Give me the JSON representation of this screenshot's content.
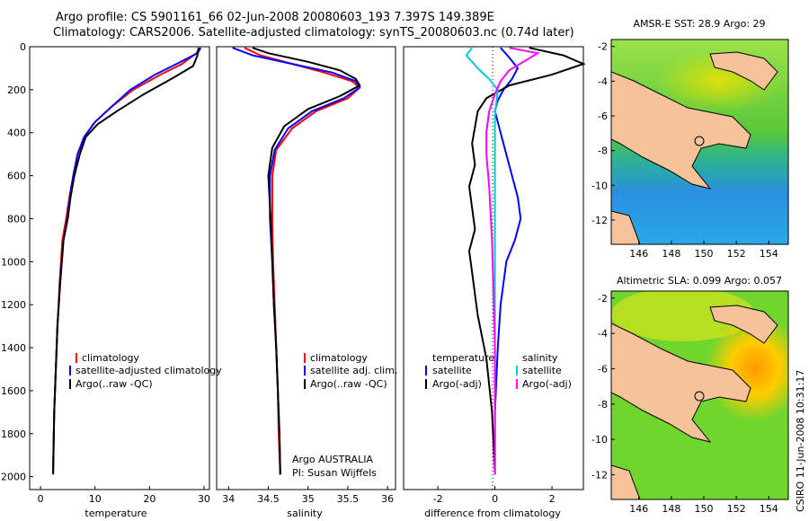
{
  "header": {
    "title_line1": "Argo profile: CS 5901161_66 02-Jun-2008 20080603_193 7.397S 149.389E",
    "title_line2": "Climatology: CARS2006. Satellite-adjusted climatology: synTS_20080603.nc (0.74d later)"
  },
  "side_label": "CSIRO 11-Jun-2008 10:31:17",
  "chart_data": [
    {
      "type": "line",
      "name": "temperature-profile",
      "xlabel": "temperature",
      "xlim": [
        -2,
        31
      ],
      "ylim": [
        0,
        2060
      ],
      "xticks": [
        0,
        10,
        20,
        30
      ],
      "yticks": [
        0,
        200,
        400,
        600,
        800,
        1000,
        1200,
        1400,
        1600,
        1800,
        2000
      ],
      "legend": [
        "climatology",
        "satellite-adjusted climatology",
        "Argo(..raw -QC)"
      ],
      "series": [
        {
          "name": "climatology",
          "color": "#ff0000",
          "x": [
            29.2,
            28.6,
            26.0,
            22.0,
            17.0,
            13.0,
            10.0,
            8.0,
            6.8,
            6.0,
            5.3,
            4.7,
            4.0,
            3.5,
            3.1,
            2.8,
            2.5,
            2.3
          ],
          "y": [
            5,
            30,
            80,
            130,
            200,
            280,
            350,
            420,
            500,
            600,
            700,
            800,
            900,
            1100,
            1300,
            1500,
            1700,
            1950
          ]
        },
        {
          "name": "satellite-adjusted climatology",
          "color": "#0000ff",
          "x": [
            29.4,
            28.8,
            25.0,
            21.0,
            16.5,
            13.0,
            10.0,
            8.0,
            6.8,
            6.0,
            5.4,
            4.9,
            4.2,
            3.6,
            3.1,
            2.8,
            2.5,
            2.3
          ],
          "y": [
            5,
            30,
            80,
            130,
            200,
            280,
            350,
            420,
            500,
            600,
            700,
            800,
            900,
            1100,
            1300,
            1500,
            1700,
            1980
          ]
        },
        {
          "name": "Argo(..raw -QC)",
          "color": "#000000",
          "x": [
            29.0,
            28.8,
            28.0,
            24.0,
            19.0,
            14.0,
            10.5,
            8.3,
            7.2,
            6.2,
            5.5,
            5.0,
            4.2,
            3.6,
            3.1,
            2.8,
            2.5,
            2.3
          ],
          "y": [
            5,
            40,
            90,
            150,
            220,
            300,
            360,
            420,
            500,
            600,
            700,
            800,
            900,
            1100,
            1300,
            1500,
            1700,
            1990
          ]
        }
      ]
    },
    {
      "type": "line",
      "name": "salinity-profile",
      "xlabel": "salinity",
      "xlim": [
        33.85,
        36.1
      ],
      "ylim": [
        0,
        2060
      ],
      "xticks": [
        34,
        34.5,
        35,
        35.5,
        36
      ],
      "legend": [
        "climatology",
        "satellite adj. clim.",
        "Argo(..raw -QC)"
      ],
      "annotations": [
        "Argo AUSTRALIA",
        "PI: Susan Wijffels"
      ],
      "series": [
        {
          "name": "climatology",
          "color": "#ff0000",
          "x": [
            34.2,
            34.4,
            34.8,
            35.2,
            35.55,
            35.65,
            35.5,
            35.1,
            34.8,
            34.6,
            34.55,
            34.55,
            34.56,
            34.58,
            34.6,
            34.62,
            34.63,
            34.65
          ],
          "y": [
            5,
            40,
            80,
            120,
            160,
            190,
            240,
            300,
            380,
            480,
            600,
            800,
            1000,
            1200,
            1400,
            1600,
            1800,
            1990
          ]
        },
        {
          "name": "satellite adj. clim.",
          "color": "#0000ff",
          "x": [
            34.05,
            34.3,
            34.8,
            35.3,
            35.6,
            35.65,
            35.45,
            35.05,
            34.75,
            34.58,
            34.52,
            34.52,
            34.55,
            34.57,
            34.6,
            34.62,
            34.64,
            34.65
          ],
          "y": [
            5,
            40,
            80,
            120,
            160,
            190,
            240,
            300,
            380,
            480,
            600,
            800,
            1000,
            1200,
            1400,
            1600,
            1800,
            1990
          ]
        },
        {
          "name": "Argo(..raw -QC)",
          "color": "#000000",
          "x": [
            34.3,
            34.5,
            35.0,
            35.4,
            35.6,
            35.65,
            35.4,
            35.0,
            34.7,
            34.55,
            34.5,
            34.53,
            34.55,
            34.57,
            34.6,
            34.62,
            34.64,
            34.65
          ],
          "y": [
            5,
            30,
            70,
            110,
            150,
            180,
            230,
            290,
            370,
            470,
            600,
            800,
            1000,
            1200,
            1400,
            1600,
            1800,
            1990
          ]
        }
      ]
    },
    {
      "type": "line",
      "name": "difference-profile",
      "xlabel": "difference from climatology",
      "xlim": [
        -3.2,
        3.1
      ],
      "ylim": [
        0,
        2060
      ],
      "xticks": [
        -2,
        0,
        2
      ],
      "legend_temperature": {
        "heading": "temperature",
        "items": [
          "satellite",
          "Argo(-adj)"
        ]
      },
      "legend_salinity": {
        "heading": "salinity",
        "items": [
          "satellite",
          "Argo(-adj)"
        ]
      },
      "series": [
        {
          "name": "temperature satellite",
          "color": "#0000ff",
          "x": [
            0.2,
            0.5,
            0.8,
            0.6,
            0.3,
            0.1,
            0.0,
            0.2,
            0.4,
            0.6,
            0.8,
            0.9,
            0.7,
            0.4,
            0.2,
            0.1,
            0.0,
            0.0
          ],
          "y": [
            5,
            50,
            100,
            150,
            200,
            250,
            300,
            400,
            500,
            600,
            700,
            800,
            900,
            1000,
            1200,
            1400,
            1700,
            1990
          ]
        },
        {
          "name": "temperature Argo(-adj)",
          "color": "#000000",
          "x": [
            1.2,
            2.4,
            3.1,
            2.0,
            0.5,
            -0.3,
            -0.6,
            -0.8,
            -0.7,
            -0.9,
            -0.8,
            -0.7,
            -0.9,
            -0.8,
            -0.6,
            -0.3,
            -0.1,
            0.0
          ],
          "y": [
            5,
            40,
            80,
            130,
            180,
            240,
            300,
            450,
            550,
            650,
            750,
            850,
            950,
            1050,
            1250,
            1450,
            1700,
            1990
          ]
        },
        {
          "name": "salinity satellite",
          "color": "#00cccc",
          "x": [
            -0.8,
            -1.0,
            -0.6,
            -0.2,
            0.1,
            0.05,
            0.0,
            0.0,
            0.0,
            0.0,
            0.0,
            0.0
          ],
          "y": [
            5,
            40,
            100,
            150,
            200,
            260,
            320,
            450,
            600,
            900,
            1400,
            1990
          ]
        },
        {
          "name": "salinity Argo(-adj)",
          "color": "#ff00ff",
          "x": [
            0.5,
            1.5,
            1.0,
            0.5,
            0.2,
            0.0,
            -0.2,
            -0.3,
            -0.3,
            -0.2,
            -0.1,
            0.0,
            0.0
          ],
          "y": [
            5,
            30,
            70,
            110,
            160,
            220,
            300,
            400,
            500,
            650,
            900,
            1400,
            1990
          ]
        }
      ]
    },
    {
      "type": "heatmap",
      "name": "sst-map",
      "title": "AMSR-E SST: 28.9 Argo: 29",
      "xticks": [
        146,
        148,
        150,
        152,
        154
      ],
      "yticks": [
        -2,
        -4,
        -6,
        -8,
        -10,
        -12
      ],
      "xlim": [
        144.3,
        155.2
      ],
      "ylim": [
        -13.4,
        -1.6
      ],
      "marker": {
        "lon": 149.389,
        "lat": -7.397
      }
    },
    {
      "type": "heatmap",
      "name": "sla-map",
      "title": "Altimetric SLA: 0.099 Argo: 0.057",
      "xticks": [
        146,
        148,
        150,
        152,
        154
      ],
      "yticks": [
        -2,
        -4,
        -6,
        -8,
        -10,
        -12
      ],
      "xlim": [
        144.3,
        155.2
      ],
      "ylim": [
        -13.4,
        -1.6
      ],
      "marker": {
        "lon": 149.389,
        "lat": -7.397
      }
    }
  ]
}
